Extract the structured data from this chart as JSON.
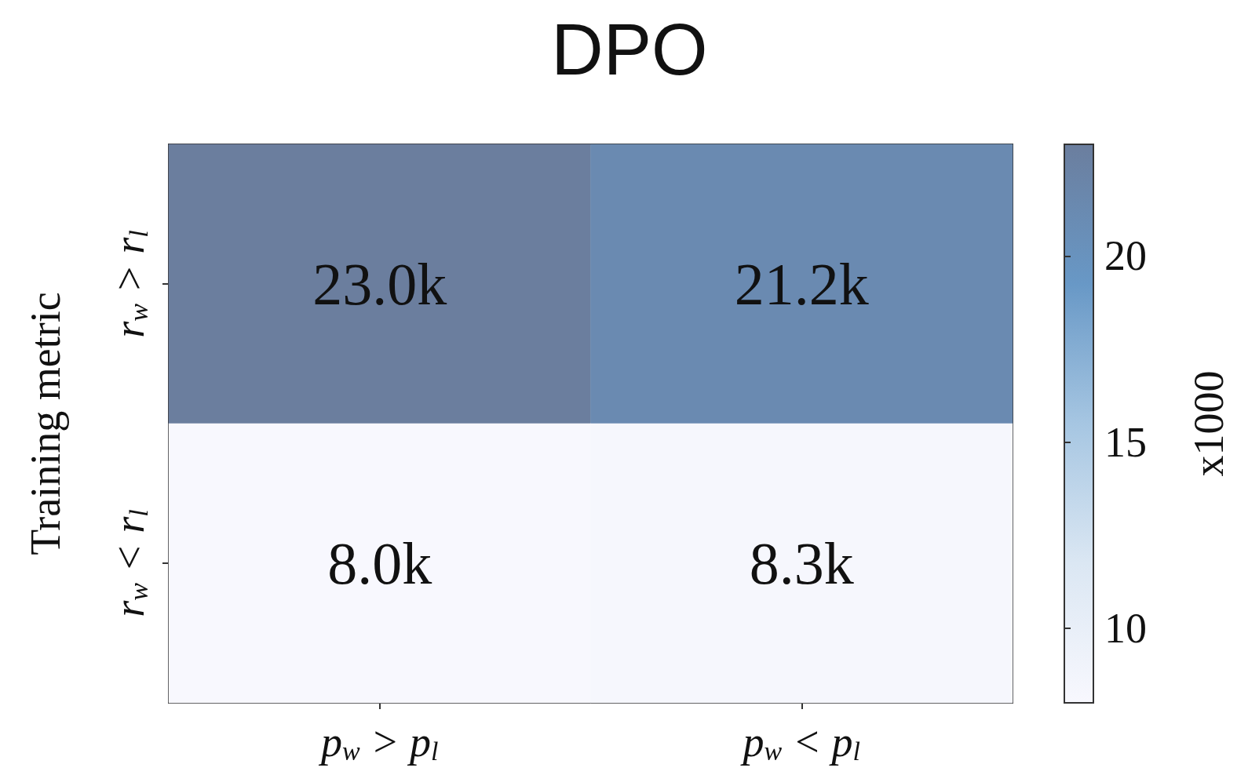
{
  "chart_data": {
    "type": "heatmap",
    "title": "DPO",
    "ylabel": "Training metric",
    "clabel": "x1000",
    "categories": [
      "p$_{w}$ > p$_{l}$",
      "p$_{w}$ < p$_{l}$"
    ],
    "y_categories": [
      "r$_{w}$ > r$_{l}$",
      "r$_{w}$ < r$_{l}$"
    ],
    "cells": [
      [
        23.0,
        21.2
      ],
      [
        8.0,
        8.3
      ]
    ],
    "cell_labels": [
      [
        "23.0k",
        "21.2k"
      ],
      [
        "8.0k",
        "8.3k"
      ]
    ],
    "colors": [
      "#f8f8fe",
      "#dbe7f3",
      "#a6c6e2",
      "#6898c6",
      "#6b7e9e"
    ],
    "clim": [
      8,
      23
    ],
    "cticks": [
      10,
      15,
      20
    ]
  }
}
